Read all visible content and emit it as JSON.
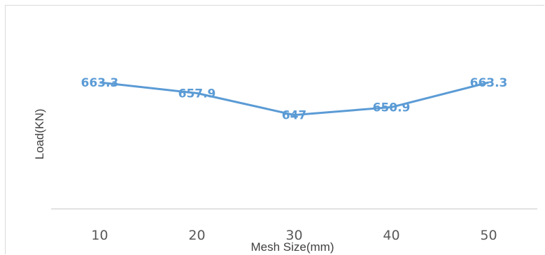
{
  "chart_data": {
    "type": "line",
    "title": "",
    "xlabel": "Mesh Size(mm)",
    "ylabel": "Load(KN)",
    "categories": [
      "10",
      "20",
      "30",
      "40",
      "50"
    ],
    "series": [
      {
        "values": [
          663.3,
          657.9,
          647,
          650.9,
          663.3
        ],
        "color": "#5b9bd5"
      }
    ],
    "data_labels": [
      "663.3",
      "657.9",
      "647",
      "650.9",
      "663.3"
    ],
    "ylim": [
      600,
      700
    ],
    "grid": false,
    "legend": "none",
    "axis_color": "#d9d9d9",
    "text_color": "#595959"
  }
}
